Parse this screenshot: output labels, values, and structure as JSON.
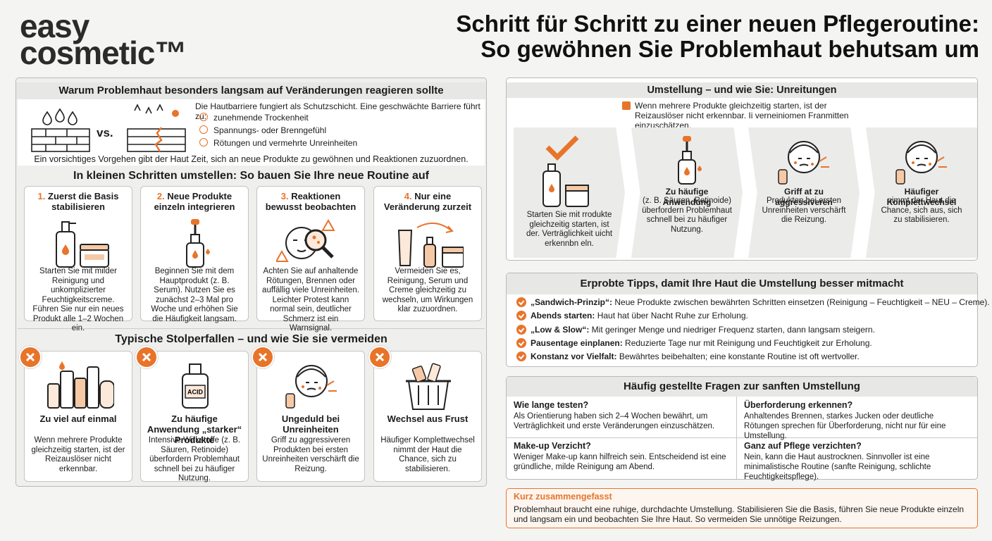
{
  "brand": [
    "easy",
    "cosmetic™"
  ],
  "title": [
    "Schritt für Schritt zu einer neuen Pflegeroutine:",
    "So gewöhnen Sie Problemhaut behutsam um"
  ],
  "why": {
    "title": "Warum Problemhaut besonders langsam auf Veränderungen reagieren sollte",
    "vs": "vs.",
    "intro": "Die Hautbarriere fungiert als Schutzschicht. Eine geschwächte Barriere führt zu:",
    "items": [
      "zunehmende Trockenheit",
      "Spannungs- oder Brenngefühl",
      "Rötungen und vermehrte Unreinheiten"
    ],
    "footer": "Ein vorsichtiges Vorgehen gibt der Haut Zeit, sich an neue Produkte zu gewöhnen und Reaktionen zuzuordnen."
  },
  "steps": {
    "title": "In kleinen Schritten umstellen: So bauen Sie Ihre neue Routine auf",
    "items": [
      {
        "number": "1.",
        "title": "Zuerst die Basis stabilisieren",
        "text": "Starten Sie mit milder Reinigung und unkomplizierter Feuchtigkeitscreme. Führen Sie nur ein neues Produkt alle 1–2 Wochen ein."
      },
      {
        "number": "2.",
        "title": "Neue Produkte einzeln integrieren",
        "text": "Beginnen Sie mit dem Hauptprodukt (z. B. Serum). Nutzen Sie es zunächst 2–3 Mal pro Woche und erhöhen Sie die Häufigkeit langsam."
      },
      {
        "number": "3.",
        "title": "Reaktionen bewusst beobachten",
        "text": "Achten Sie auf anhaltende Rötungen, Brennen oder auffällig viele Unreinheiten. Leichter Protest kann normal sein, deutlicher Schmerz ist ein Warnsignal."
      },
      {
        "number": "4.",
        "title": "Nur eine Veränderung zurzeit",
        "text": "Vermeiden Sie es, Reinigung, Serum und Creme gleichzeitig zu wechseln, um Wirkungen klar zuzuordnen."
      }
    ]
  },
  "pitfalls": {
    "title": "Typische Stolperfallen – und wie Sie sie vermeiden",
    "acid_label": "ACID",
    "items": [
      {
        "title": "Zu viel auf einmal",
        "text": "Wenn mehrere Produkte gleichzeitig starten, ist der Reizauslöser nicht erkennbar."
      },
      {
        "title": "Zu häufige Anwendung „starker“ Produkte",
        "text": "Intensive Wirkstoffe (z. B. Säuren, Retinoide) überfordern Problemhaut schnell bei zu häufiger Nutzung."
      },
      {
        "title": "Ungeduld bei Unreinheiten",
        "text": "Griff zu aggressiveren Produkten bei ersten Unreinheiten verschärft die Reizung."
      },
      {
        "title": "Wechsel aus Frust",
        "text": "Häufiger Komplettwechsel nimmt der Haut die Chance, sich zu stabilisieren."
      }
    ]
  },
  "switch": {
    "title": "Umstellung – und wie Sie: Unreitungen",
    "note": "Wenn mehrere Produkte gleichzeitig starten, ist der Reizauslöser nicht erkennbar. Ii verneiniomen Franmitten einzuschätzen.",
    "items": [
      {
        "text": "Starten Sie mit rrodukte gleichzeitig starten, ist der. Verträglichkeit uicht erkennbn eln."
      },
      {
        "title": "Zu häufige Anwendung",
        "text": "(z. B. Säuren, Retinoide) überfordern Problemhaut schnell bei zu häufiger Nutzung."
      },
      {
        "title": "Griff at zu aggressiveren",
        "text": "Produkten bei ersten Unreinheiten verschärft die Reizung."
      },
      {
        "title": "Häufiger Komplettwechsel",
        "text": "nimmt der Haut die Chance, sich aus, sich zu stabilisieren."
      }
    ]
  },
  "tips": {
    "title": "Erprobte Tipps, damit Ihre Haut die Umstellung besser mitmacht",
    "items": [
      {
        "label": "„Sandwich-Prinzip“:",
        "text": "Neue Produkte zwischen bewährten Schritten einsetzen (Reinigung – Feuchtigkeit – NEU – Creme)."
      },
      {
        "label": "Abends starten:",
        "text": "Haut hat über Nacht Ruhe zur Erholung."
      },
      {
        "label": "„Low & Slow“:",
        "text": "Mit geringer Menge und niedriger Frequenz starten, dann langsam steigern."
      },
      {
        "label": "Pausentage einplanen:",
        "text": "Reduzierte Tage nur mit Reinigung und Feuchtigkeit zur Erholung."
      },
      {
        "label": "Konstanz vor Vielfalt:",
        "text": "Bewährtes beibehalten; eine konstante Routine ist oft wertvoller."
      }
    ]
  },
  "faq": {
    "title": "Häufig gestellte Fragen zur sanften Umstellung",
    "items": [
      {
        "q": "Wie lange testen?",
        "a": "Als Orientierung haben sich 2–4 Wochen bewährt, um Verträglichkeit und erste Veränderungen einzuschätzen."
      },
      {
        "q": "Überforderung erkennen?",
        "a": "Anhaltendes Brennen, starkes Jucken oder deutliche Rötungen sprechen für Überforderung, nicht nur für eine Umstellung."
      },
      {
        "q": "Make-up Verzicht?",
        "a": "Weniger Make-up kann hilfreich sein. Entscheidend ist eine gründliche, milde Reinigung am Abend."
      },
      {
        "q": "Ganz auf Pflege verzichten?",
        "a": "Nein, kann die Haut austrocknen. Sinnvoller ist eine minimalistische Routine (sanfte Reinigung, schlichte Feuchtigkeitspflege)."
      }
    ]
  },
  "summary": {
    "title": "Kurz zusammengefasst",
    "text": "Problemhaut braucht eine ruhige, durchdachte Umstellung. Stabilisieren Sie die Basis, führen Sie neue Produkte einzeln und langsam ein und beobachten Sie Ihre Haut. So vermeiden Sie unnötige Reizungen."
  }
}
